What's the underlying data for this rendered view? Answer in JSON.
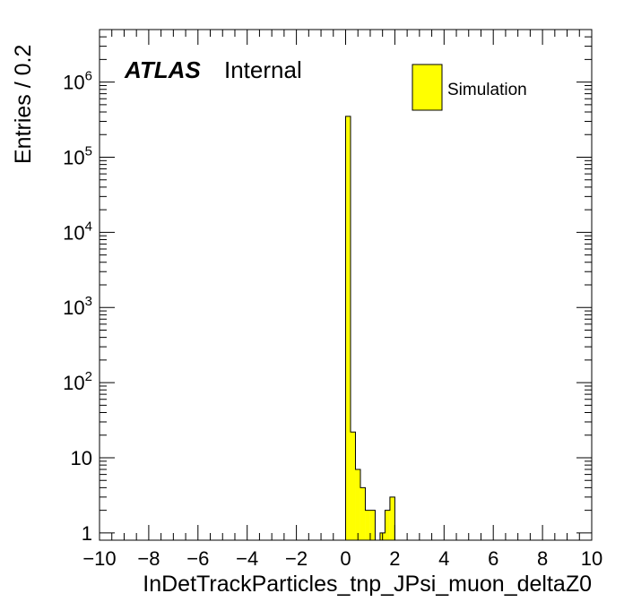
{
  "chart_data": {
    "type": "bar",
    "xlabel": "InDetTrackParticles_tnp_JPsi_muon_deltaZ0",
    "ylabel": "Entries / 0.2",
    "xlim": [
      -10,
      10
    ],
    "ylim_log": [
      0.8,
      5000000
    ],
    "log_y": true,
    "x_ticks": [
      "−10",
      "−8",
      "−6",
      "−4",
      "−2",
      "0",
      "2",
      "4",
      "6",
      "8",
      "10"
    ],
    "y_ticks": [
      {
        "base": "1",
        "exp": ""
      },
      {
        "base": "10",
        "exp": ""
      },
      {
        "base": "10",
        "exp": "2"
      },
      {
        "base": "10",
        "exp": "3"
      },
      {
        "base": "10",
        "exp": "4"
      },
      {
        "base": "10",
        "exp": "5"
      },
      {
        "base": "10",
        "exp": "6"
      }
    ],
    "bin_width": 0.2,
    "series": [
      {
        "name": "Simulation",
        "color": "#ffff00",
        "bins": [
          {
            "x": 0.0,
            "y": 350000
          },
          {
            "x": 0.2,
            "y": 22
          },
          {
            "x": 0.4,
            "y": 7
          },
          {
            "x": 0.6,
            "y": 4
          },
          {
            "x": 0.8,
            "y": 2
          },
          {
            "x": 1.0,
            "y": 2
          },
          {
            "x": 1.4,
            "y": 1
          },
          {
            "x": 1.6,
            "y": 2
          },
          {
            "x": 1.8,
            "y": 3
          }
        ]
      }
    ],
    "legend_position": "top-right",
    "atlas_label": "ATLAS",
    "atlas_sublabel": "Internal"
  }
}
